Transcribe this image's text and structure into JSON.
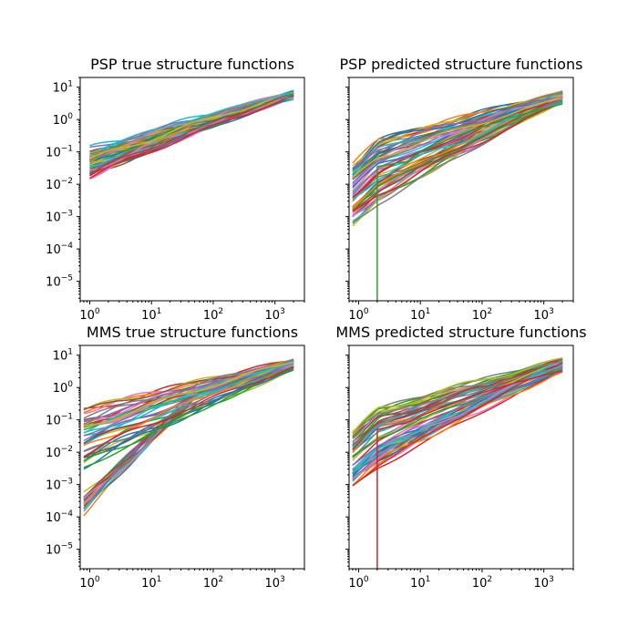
{
  "chart_data": [
    {
      "type": "line",
      "title": "PSP true structure functions",
      "xscale": "log",
      "yscale": "log",
      "xlim": [
        0.7,
        3000
      ],
      "ylim": [
        2.5e-06,
        20
      ],
      "x_ticks": [
        "10^0",
        "10^1",
        "10^2",
        "10^3"
      ],
      "y_ticks": [
        "10^-5",
        "10^-4",
        "10^-3",
        "10^-2",
        "10^-1",
        "10^0",
        "10^1"
      ],
      "show_y_tick_labels": true,
      "grid": false,
      "legend": "none",
      "series_count": 60,
      "x_range": [
        1,
        2000
      ],
      "y_at_x1_range": [
        0.015,
        0.13
      ],
      "y_at_x2000_range": [
        4,
        8
      ],
      "outliers": []
    },
    {
      "type": "line",
      "title": "PSP predicted structure functions",
      "xscale": "log",
      "yscale": "log",
      "xlim": [
        0.7,
        3000
      ],
      "ylim": [
        2.5e-06,
        20
      ],
      "x_ticks": [
        "10^0",
        "10^1",
        "10^2",
        "10^3"
      ],
      "y_ticks": [
        "10^-5",
        "10^-4",
        "10^-3",
        "10^-2",
        "10^-1",
        "10^0",
        "10^1"
      ],
      "show_y_tick_labels": false,
      "grid": false,
      "legend": "none",
      "series_count": 60,
      "x_range": [
        0.8,
        2000
      ],
      "y_at_x1_range": [
        0.0008,
        0.14
      ],
      "y_at_x2000_range": [
        3,
        8
      ],
      "outliers": [
        {
          "color": "#2ca02c",
          "x": [
            2,
            2,
            3,
            4,
            6,
            10,
            30,
            100,
            300,
            1000,
            2000
          ],
          "y": [
            2.5e-06,
            0.035,
            0.04,
            0.045,
            0.05,
            0.1,
            0.25,
            0.6,
            1.2,
            2.2,
            3.0
          ]
        }
      ]
    },
    {
      "type": "line",
      "title": "MMS true structure functions",
      "xscale": "log",
      "yscale": "log",
      "xlim": [
        0.7,
        3000
      ],
      "ylim": [
        2.5e-06,
        20
      ],
      "x_ticks": [
        "10^0",
        "10^1",
        "10^2",
        "10^3"
      ],
      "y_ticks": [
        "10^-5",
        "10^-4",
        "10^-3",
        "10^-2",
        "10^-1",
        "10^0",
        "10^1"
      ],
      "show_y_tick_labels": true,
      "grid": false,
      "legend": "none",
      "series_count": 60,
      "x_range": [
        0.8,
        2000
      ],
      "y_at_x1_range": [
        0.003,
        0.2
      ],
      "y_at_x2000_range": [
        3,
        8
      ],
      "steep_group_count": 18,
      "steep_y_at_x1_range": [
        0.00012,
        0.0005
      ],
      "outliers": []
    },
    {
      "type": "line",
      "title": "MMS predicted structure functions",
      "xscale": "log",
      "yscale": "log",
      "xlim": [
        0.7,
        3000
      ],
      "ylim": [
        2.5e-06,
        20
      ],
      "x_ticks": [
        "10^0",
        "10^1",
        "10^2",
        "10^3"
      ],
      "y_ticks": [
        "10^-5",
        "10^-4",
        "10^-3",
        "10^-2",
        "10^-1",
        "10^0",
        "10^1"
      ],
      "show_y_tick_labels": false,
      "grid": false,
      "legend": "none",
      "series_count": 60,
      "x_range": [
        0.8,
        2000
      ],
      "y_at_x1_range": [
        0.0012,
        0.13
      ],
      "y_at_x2000_range": [
        3,
        8
      ],
      "outliers": [
        {
          "color": "#d62728",
          "x": [
            2,
            2,
            3,
            4,
            6,
            10,
            30,
            100,
            300,
            1000,
            2000
          ],
          "y": [
            2.5e-06,
            0.05,
            0.06,
            0.07,
            0.08,
            0.13,
            0.3,
            0.7,
            1.3,
            2.4,
            3.2
          ]
        }
      ]
    }
  ],
  "palette": [
    "#1f77b4",
    "#ff7f0e",
    "#2ca02c",
    "#d62728",
    "#9467bd",
    "#8c564b",
    "#e377c2",
    "#7f7f7f",
    "#bcbd22",
    "#17becf"
  ]
}
